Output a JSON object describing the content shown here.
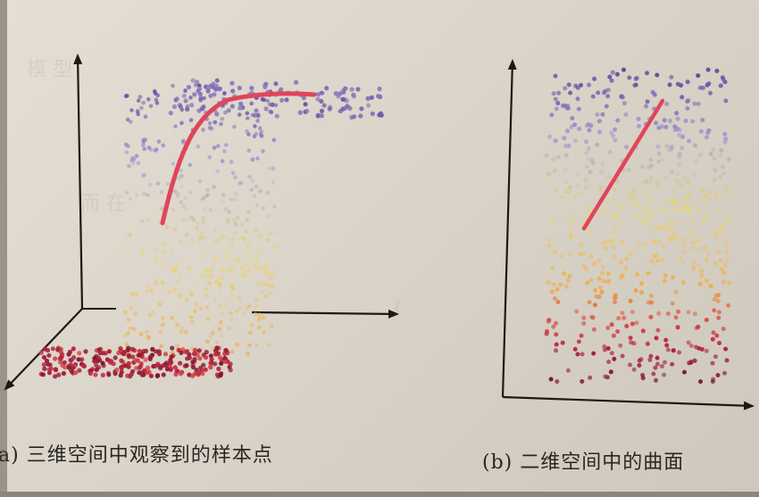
{
  "figure": {
    "panel_a_caption": "a) 三维空间中观察到的样本点",
    "panel_b_caption": "(b) 二维空间中的曲面"
  },
  "colors": {
    "paper": "#e2dcd2",
    "axis": "#1c1a18",
    "curve": "#e0455a",
    "purple": "#5d3e9a",
    "lavender": "#a99cd3",
    "yellow": "#ecd96a",
    "orange": "#f0a94a",
    "red": "#c7263f",
    "darkred": "#7a1530"
  }
}
